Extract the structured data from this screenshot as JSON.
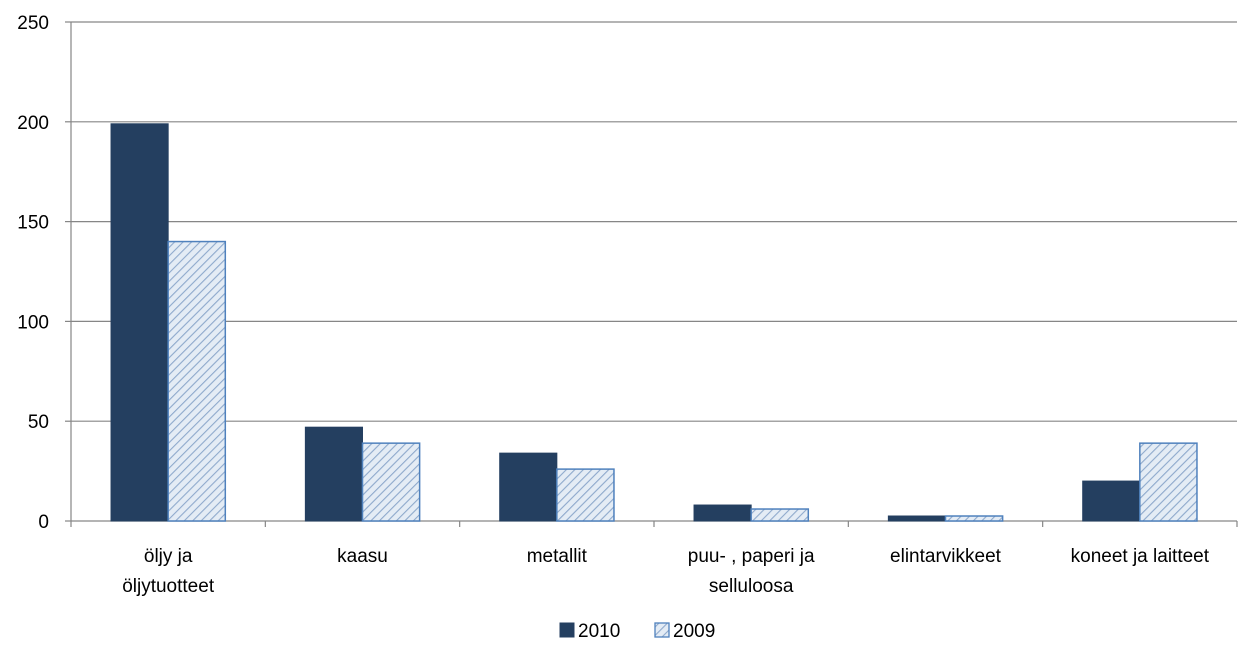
{
  "chart_data": {
    "type": "bar",
    "categories": [
      [
        "öljy ja",
        "öljytuotteet"
      ],
      [
        "kaasu"
      ],
      [
        "metallit"
      ],
      [
        "puu- , paperi ja",
        "selluloosa"
      ],
      [
        "elintarvikkeet"
      ],
      [
        "koneet ja laitteet"
      ]
    ],
    "series": [
      {
        "name": "2010",
        "values": [
          199,
          47,
          34,
          8,
          2.5,
          20
        ],
        "color": "#243f60",
        "pattern": "solid"
      },
      {
        "name": "2009",
        "values": [
          140,
          39,
          26,
          6,
          2.5,
          39
        ],
        "color": "#dbe5f1",
        "stroke": "#4f81bd",
        "pattern": "diagonal-hatch"
      }
    ],
    "y_ticks": [
      "0",
      "50",
      "100",
      "150",
      "200",
      "250"
    ],
    "ylim": [
      0,
      250
    ],
    "grid": true,
    "legend_position": "bottom"
  }
}
